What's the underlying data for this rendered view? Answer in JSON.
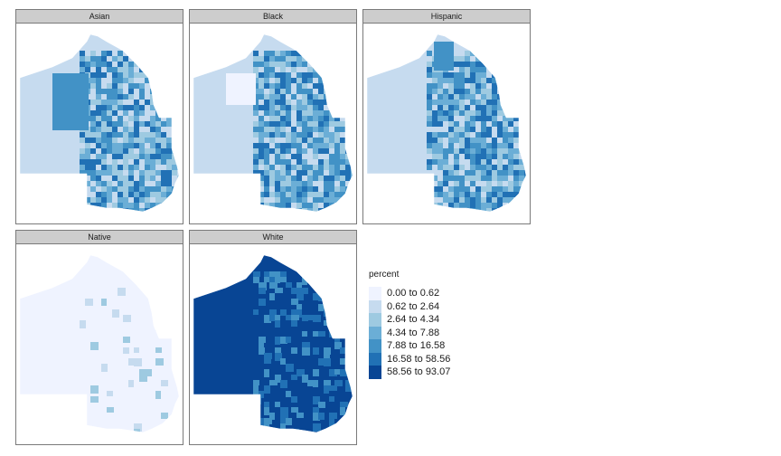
{
  "panels": [
    {
      "title": "Asian",
      "palette_bias": 2
    },
    {
      "title": "Black",
      "palette_bias": 2
    },
    {
      "title": "Hispanic",
      "palette_bias": 2
    },
    {
      "title": "Native",
      "palette_bias": 0
    },
    {
      "title": "White",
      "palette_bias": 6
    }
  ],
  "legend": {
    "title": "percent",
    "items": [
      {
        "label": "0.00 to 0.62",
        "color": "#eff3ff"
      },
      {
        "label": "0.62 to 2.64",
        "color": "#c6dbef"
      },
      {
        "label": "2.64 to 4.34",
        "color": "#9ecae1"
      },
      {
        "label": "4.34 to 7.88",
        "color": "#6baed6"
      },
      {
        "label": "7.88 to 16.58",
        "color": "#4292c6"
      },
      {
        "label": "16.58 to 58.56",
        "color": "#2171b5"
      },
      {
        "label": "58.56 to 93.07",
        "color": "#084594"
      }
    ]
  }
}
